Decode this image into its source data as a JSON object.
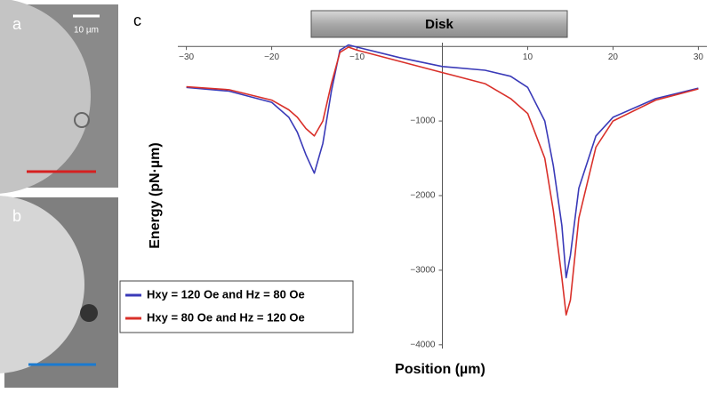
{
  "panels": {
    "a": {
      "label": "a",
      "scale_bar": "10 µm"
    },
    "b": {
      "label": "b"
    }
  },
  "chart_data": {
    "type": "line",
    "panel_label": "c",
    "annotation": "Disk",
    "xlabel": "Position (µm)",
    "ylabel": "Energy (pN·µm)",
    "x": [
      -30,
      -25,
      -20,
      -18,
      -17,
      -16,
      -15,
      -14,
      -13,
      -12,
      -11,
      -10,
      -5,
      0,
      5,
      8,
      10,
      12,
      13,
      14,
      14.5,
      15,
      16,
      18,
      20,
      25,
      30
    ],
    "series": [
      {
        "name": "Hxy = 120 Oe and Hz = 80 Oe",
        "color": "#3a3ab8",
        "values": [
          -550,
          -600,
          -750,
          -950,
          -1150,
          -1450,
          -1700,
          -1300,
          -600,
          -50,
          20,
          -10,
          -150,
          -270,
          -320,
          -400,
          -550,
          -1000,
          -1600,
          -2400,
          -3100,
          -2800,
          -1900,
          -1200,
          -950,
          -700,
          -560
        ]
      },
      {
        "name": "Hxy = 80 Oe and Hz = 120 Oe",
        "color": "#d9302a",
        "values": [
          -540,
          -580,
          -720,
          -850,
          -950,
          -1100,
          -1200,
          -1000,
          -500,
          -80,
          -10,
          -50,
          -200,
          -350,
          -500,
          -700,
          -900,
          -1500,
          -2200,
          -3100,
          -3600,
          -3400,
          -2300,
          -1350,
          -1000,
          -720,
          -570
        ]
      }
    ],
    "xlim": [
      -31,
      31
    ],
    "ylim": [
      -4050,
      50
    ],
    "xticks": [
      {
        "value": -30,
        "label": "−30"
      },
      {
        "value": -20,
        "label": "−20"
      },
      {
        "value": -10,
        "label": "−10"
      },
      10,
      20,
      30
    ],
    "yticks": [
      {
        "value": -1000,
        "label": "−1000"
      },
      {
        "value": -2000,
        "label": "−2000"
      },
      {
        "value": -3000,
        "label": "−3000"
      },
      {
        "value": -4000,
        "label": "−4000"
      }
    ],
    "legend": "lower left"
  }
}
